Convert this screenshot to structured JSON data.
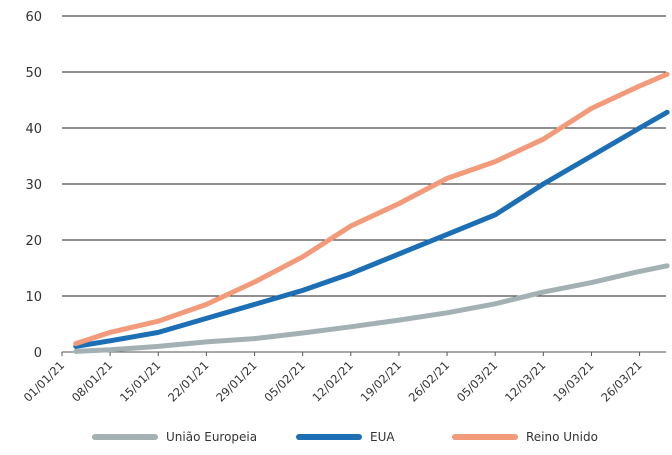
{
  "chart_data": {
    "type": "line",
    "title": "",
    "xlabel": "",
    "ylabel": "",
    "ylim": [
      0,
      60
    ],
    "yticks": [
      "0",
      "10",
      "20",
      "30",
      "40",
      "50",
      "60"
    ],
    "xticks": [
      "01/01/21",
      "08/01/21",
      "15/01/21",
      "22/01/21",
      "29/01/21",
      "05/02/21",
      "12/02/21",
      "19/02/21",
      "26/02/21",
      "05/03/21",
      "12/03/21",
      "19/03/21",
      "26/03/21"
    ],
    "x": [
      "03/01/21",
      "08/01/21",
      "15/01/21",
      "22/01/21",
      "29/01/21",
      "05/02/21",
      "12/02/21",
      "19/02/21",
      "26/02/21",
      "05/03/21",
      "12/03/21",
      "19/03/21",
      "26/03/21",
      "30/03/21"
    ],
    "grid": "horizontal",
    "legend_position": "bottom",
    "series": [
      {
        "name": "União Europeia",
        "color": "#a3b1b5",
        "values": [
          0.1,
          0.4,
          1.0,
          1.8,
          2.4,
          3.4,
          4.5,
          5.7,
          7.0,
          8.6,
          10.7,
          12.4,
          14.4,
          15.4
        ]
      },
      {
        "name": "EUA",
        "color": "#1c6fb5",
        "values": [
          1.0,
          2.0,
          3.5,
          6.0,
          8.5,
          11.0,
          14.0,
          17.5,
          21.0,
          24.5,
          30.0,
          35.0,
          40.0,
          42.8
        ]
      },
      {
        "name": "Reino Unido",
        "color": "#f39a7b",
        "values": [
          1.5,
          3.5,
          5.5,
          8.5,
          12.5,
          17.0,
          22.5,
          26.5,
          31.0,
          34.0,
          38.0,
          43.5,
          47.5,
          49.6
        ]
      }
    ]
  }
}
